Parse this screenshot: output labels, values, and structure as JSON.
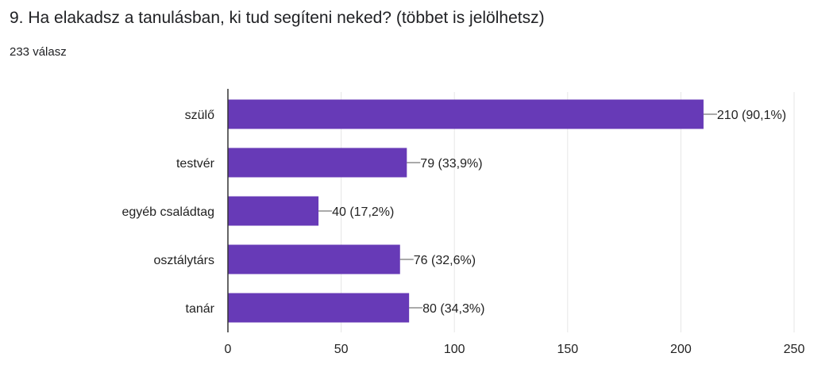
{
  "question": {
    "title": "9. Ha elakadsz a tanulásban, ki tud segíteni neked? (többet is jelölhetsz)",
    "response_count": "233 válasz"
  },
  "colors": {
    "bar": "#673ab7",
    "grid": "#e6e6e6",
    "axis": "#333333",
    "text": "#222222"
  },
  "chart_data": {
    "type": "bar",
    "orientation": "horizontal",
    "categories": [
      "szülő",
      "testvér",
      "egyéb családtag",
      "osztálytárs",
      "tanár"
    ],
    "values": [
      210,
      79,
      40,
      76,
      80
    ],
    "data_labels": [
      "210 (90,1%)",
      "79 (33,9%)",
      "40 (17,2%)",
      "76 (32,6%)",
      "80 (34,3%)"
    ],
    "xlim": [
      0,
      250
    ],
    "xticks": [
      0,
      50,
      100,
      150,
      200,
      250
    ],
    "grid": true
  }
}
